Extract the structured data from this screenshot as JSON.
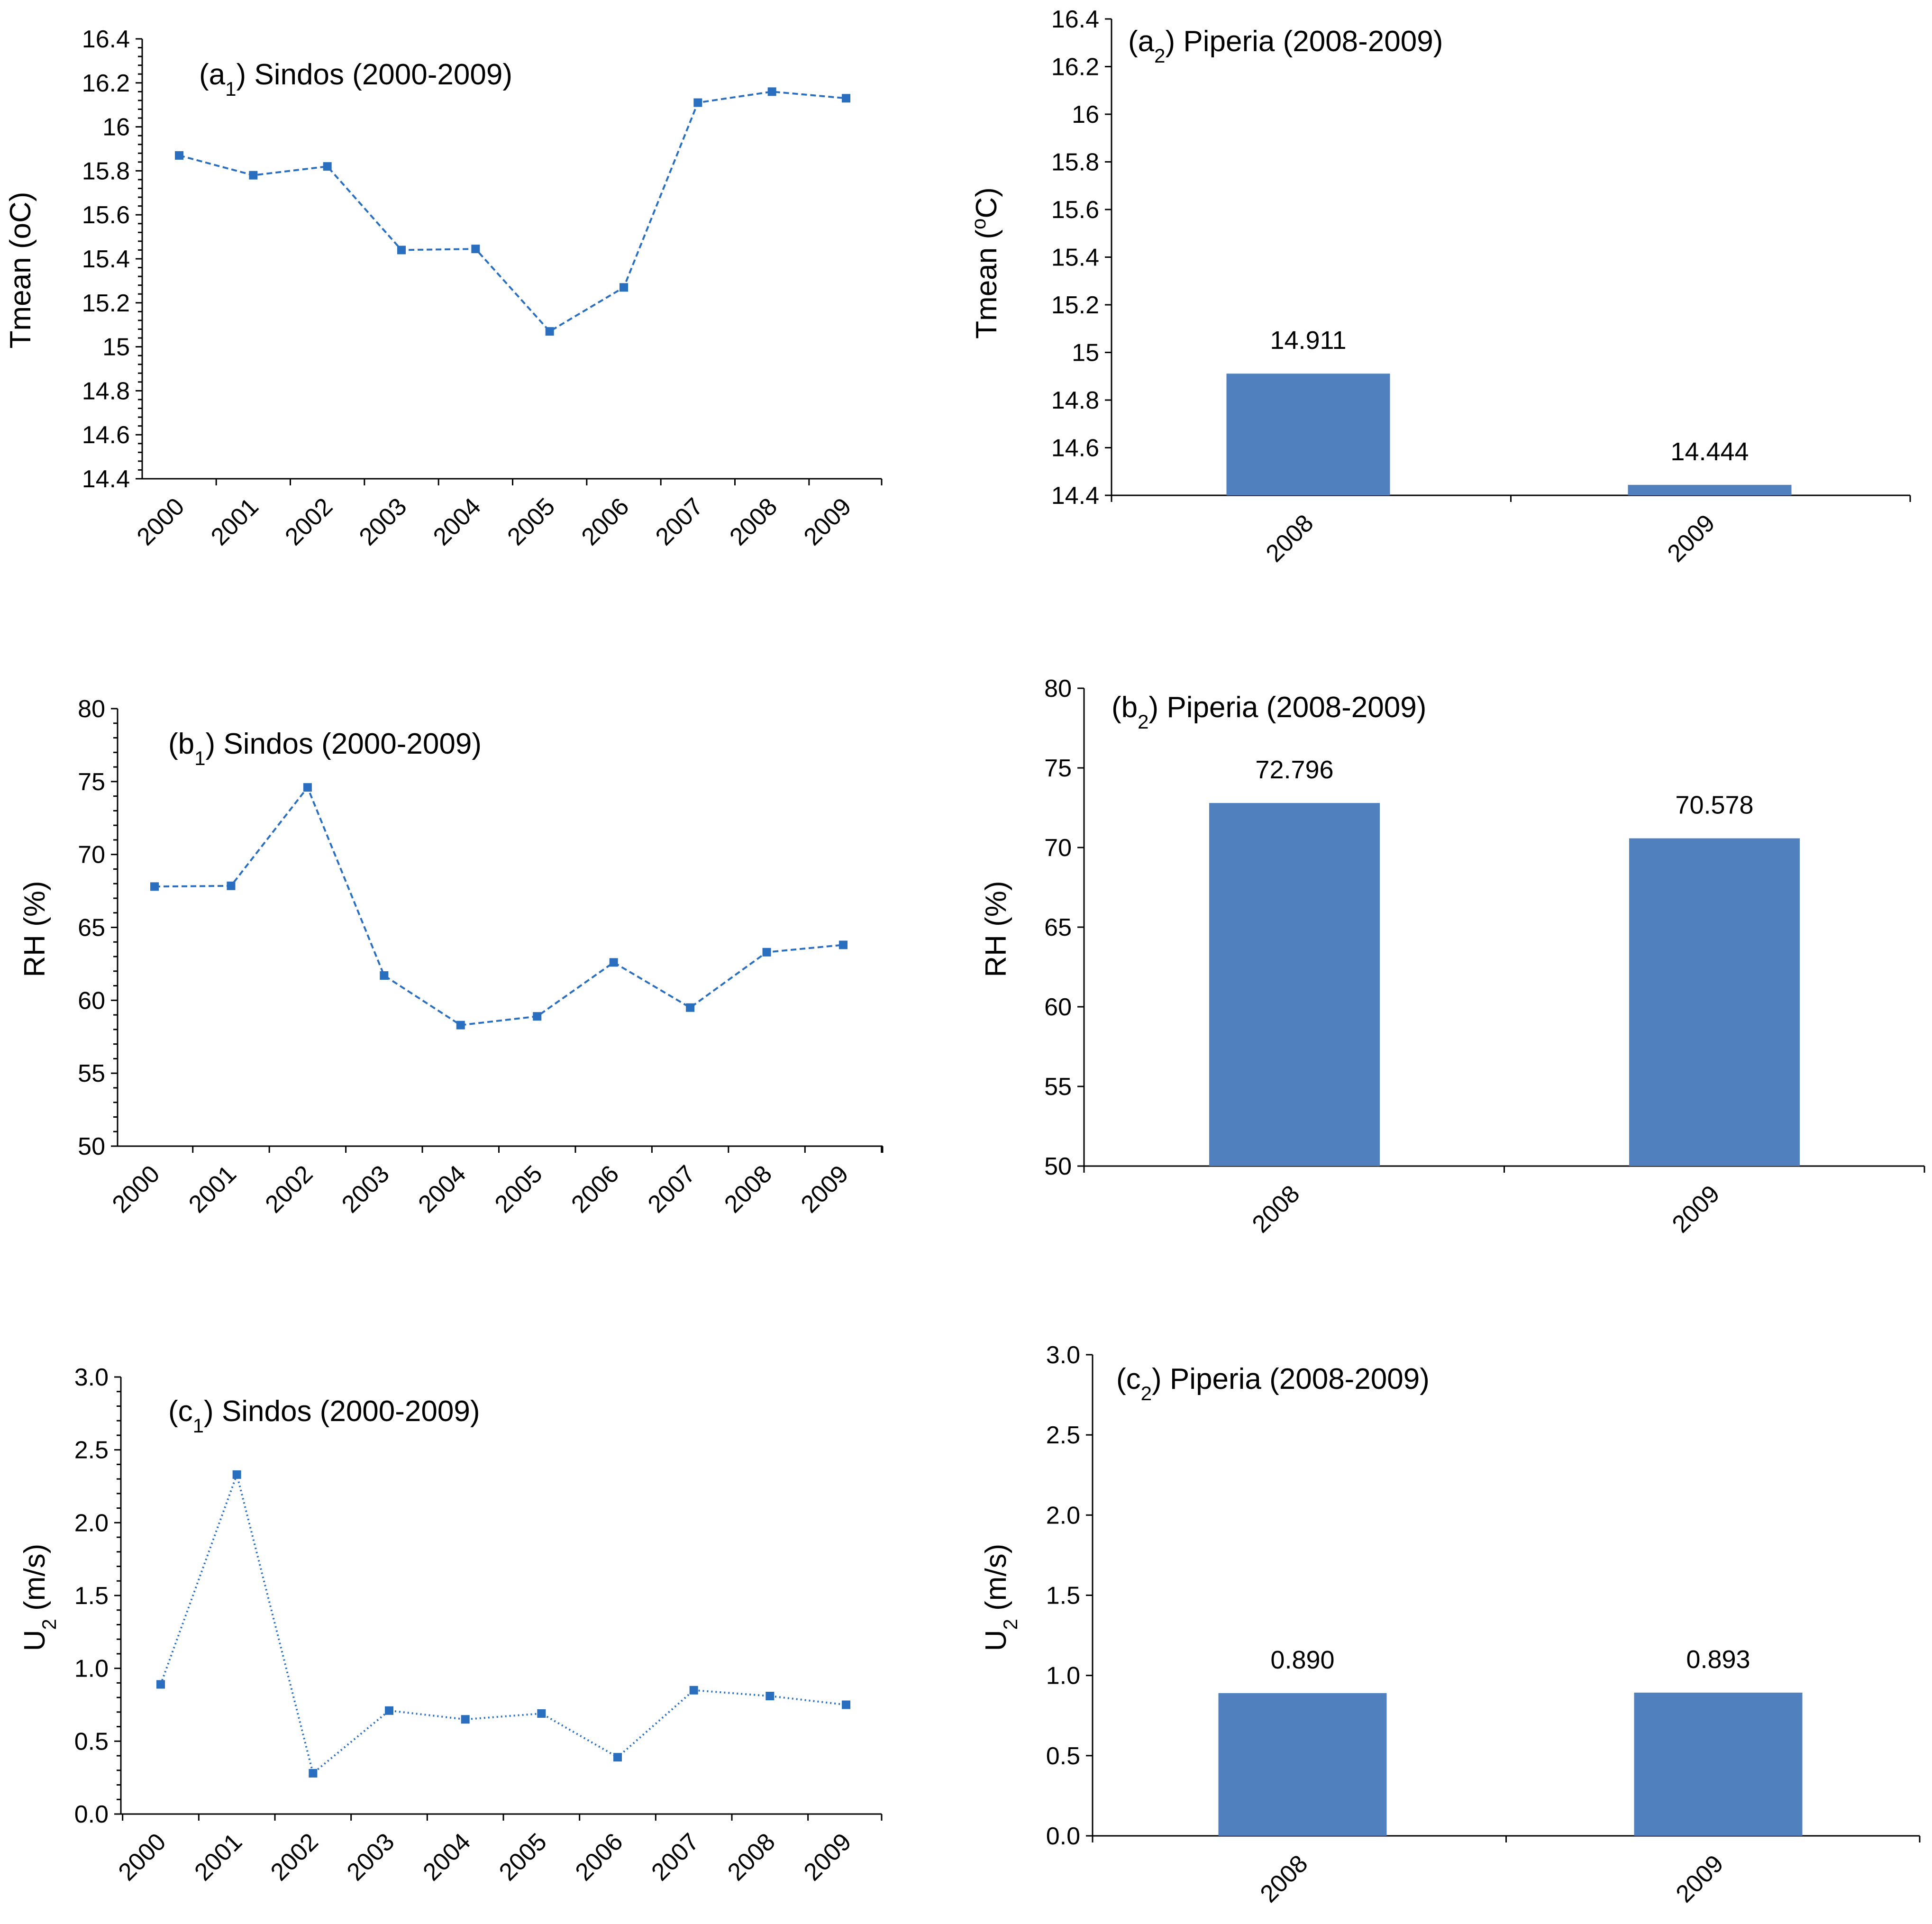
{
  "chart_data": [
    {
      "id": "a1",
      "type": "line",
      "title": {
        "pre": "(a",
        "sub": "1",
        "post": ") Sindos (2000-2009)"
      },
      "ylabel": {
        "pre": "Tmean (oC)",
        "sub": "",
        "post": ""
      },
      "xlabel": "",
      "ylim": [
        14.4,
        16.4
      ],
      "ytick_step": 0.2,
      "minor_ticks_per_major": 4,
      "ytick_decimals": -1,
      "categories": [
        "2000",
        "2001",
        "2002",
        "2003",
        "2004",
        "2005",
        "2006",
        "2007",
        "2008",
        "2009"
      ],
      "series": [
        {
          "name": "Sindos",
          "values": [
            15.87,
            15.78,
            15.82,
            15.44,
            15.445,
            15.07,
            15.27,
            16.11,
            16.16,
            16.13
          ]
        }
      ],
      "line_style": "dashed",
      "color": "#2a6fbf"
    },
    {
      "id": "a2",
      "type": "bar",
      "title": {
        "pre": "(a",
        "sub": "2",
        "post": ") Piperia (2008-2009)"
      },
      "ylabel": {
        "pre": "Tmean (",
        "sup": "o",
        "post": "C)"
      },
      "xlabel": "",
      "ylim": [
        14.4,
        16.4
      ],
      "ytick_step": 0.2,
      "minor_ticks_per_major": 0,
      "ytick_decimals": -1,
      "categories": [
        "2008",
        "2009"
      ],
      "values": [
        14.911,
        14.444
      ],
      "data_labels": [
        "14.911",
        "14.444"
      ],
      "color": "#5080bd"
    },
    {
      "id": "b1",
      "type": "line",
      "title": {
        "pre": "(b",
        "sub": "1",
        "post": ") Sindos (2000-2009)"
      },
      "ylabel": {
        "pre": "RH (%)",
        "sub": "",
        "post": ""
      },
      "xlabel": "",
      "ylim": [
        50,
        80
      ],
      "ytick_step": 5,
      "minor_ticks_per_major": 4,
      "ytick_decimals": 0,
      "categories": [
        "2000",
        "2001",
        "2002",
        "2003",
        "2004",
        "2005",
        "2006",
        "2007",
        "2008",
        "2009"
      ],
      "series": [
        {
          "name": "Sindos",
          "values": [
            67.8,
            67.85,
            74.6,
            61.7,
            58.3,
            58.9,
            62.6,
            59.5,
            63.3,
            63.8
          ]
        }
      ],
      "line_style": "dashed",
      "color": "#2a6fbf"
    },
    {
      "id": "b2",
      "type": "bar",
      "title": {
        "pre": "(b",
        "sub": "2",
        "post": ") Piperia (2008-2009)"
      },
      "ylabel": {
        "pre": "RH (%)",
        "sup": "",
        "post": ""
      },
      "xlabel": "",
      "ylim": [
        50,
        80
      ],
      "ytick_step": 5,
      "minor_ticks_per_major": 0,
      "ytick_decimals": 0,
      "categories": [
        "2008",
        "2009"
      ],
      "values": [
        72.796,
        70.578
      ],
      "data_labels": [
        "72.796",
        "70.578"
      ],
      "color": "#5080bd"
    },
    {
      "id": "c1",
      "type": "line",
      "title": {
        "pre": "(c",
        "sub": "1",
        "post": ") Sindos (2000-2009)"
      },
      "ylabel": {
        "pre": "U",
        "sub": "2",
        "post": " (m/s)"
      },
      "xlabel": "",
      "ylim": [
        0,
        3
      ],
      "ytick_step": 0.5,
      "minor_ticks_per_major": 4,
      "ytick_decimals": 1,
      "categories": [
        "2000",
        "2001",
        "2002",
        "2003",
        "2004",
        "2005",
        "2006",
        "2007",
        "2008",
        "2009"
      ],
      "series": [
        {
          "name": "Sindos",
          "values": [
            0.89,
            2.33,
            0.28,
            0.71,
            0.65,
            0.69,
            0.39,
            0.85,
            0.81,
            0.75
          ]
        }
      ],
      "line_style": "dotted",
      "color": "#2a6fbf"
    },
    {
      "id": "c2",
      "type": "bar",
      "title": {
        "pre": "(c",
        "sub": "2",
        "post": ") Piperia (2008-2009)"
      },
      "ylabel": {
        "pre": "U",
        "sub": "2",
        "post": " (m/s)"
      },
      "xlabel": "",
      "ylim": [
        0,
        3
      ],
      "ytick_step": 0.5,
      "minor_ticks_per_major": 0,
      "ytick_decimals": 1,
      "categories": [
        "2008",
        "2009"
      ],
      "values": [
        0.89,
        0.893
      ],
      "data_labels": [
        "0.890",
        "0.893"
      ],
      "color": "#5080bd"
    }
  ]
}
